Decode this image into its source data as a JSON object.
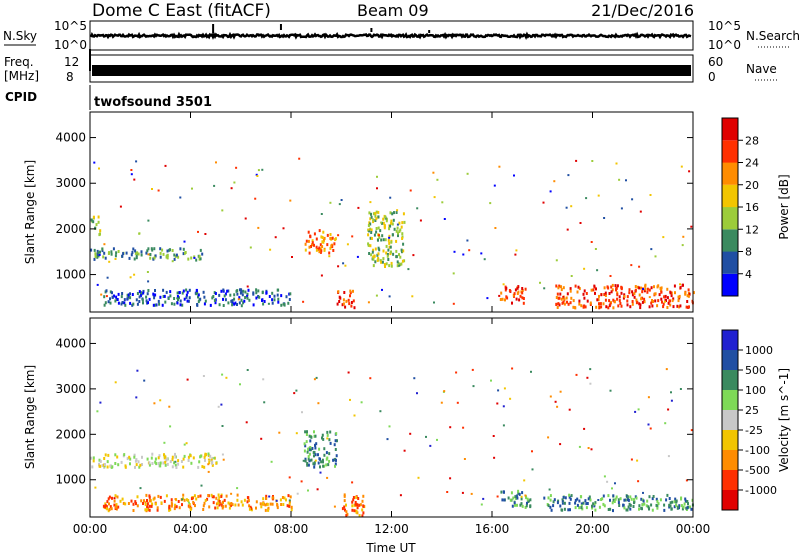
{
  "header": {
    "station": "Dome C East (fitACF)",
    "beam": "Beam 09",
    "date": "21/Dec/2016",
    "cpid_value": "twofsound 3501"
  },
  "strips": {
    "nsky": {
      "left_label": "N.Sky",
      "left_ticks": [
        "10^5",
        "10^0"
      ],
      "right_ticks": [
        "10^5",
        "10^0"
      ],
      "right_label": "N.Search"
    },
    "freq": {
      "left_label_top": "Freq.",
      "left_label_bottom": "[MHz]",
      "left_ticks": [
        "12",
        "8"
      ],
      "right_ticks": [
        "60",
        "0"
      ],
      "right_label": "Nave"
    },
    "cpid_label": "CPID"
  },
  "chart_data": [
    {
      "type": "heatmap",
      "panel": "power",
      "ylabel": "Slant Range [km]",
      "xlabel": "",
      "ylim": [
        180,
        4560
      ],
      "yticks": [
        "4000",
        "3000",
        "2000",
        "1000"
      ],
      "colorbar": {
        "label": "Power [dB]",
        "ticks": [
          "28",
          "24",
          "20",
          "16",
          "12",
          "8",
          "4"
        ],
        "colors": [
          "#0000ff",
          "#204fa3",
          "#3a8a5f",
          "#9ccc3a",
          "#f2c500",
          "#ff8c00",
          "#ff3000",
          "#e00000"
        ]
      },
      "features": [
        {
          "time_h": [
            0.0,
            0.4
          ],
          "range_km": [
            1900,
            2300
          ],
          "level": "medium"
        },
        {
          "time_h": [
            0.0,
            4.5
          ],
          "range_km": [
            1350,
            1600
          ],
          "level": "low-medium"
        },
        {
          "time_h": [
            0.5,
            8.0
          ],
          "range_km": [
            350,
            700
          ],
          "level": "low"
        },
        {
          "time_h": [
            8.5,
            9.8
          ],
          "range_km": [
            1500,
            2000
          ],
          "level": "high"
        },
        {
          "time_h": [
            9.8,
            10.5
          ],
          "range_km": [
            300,
            700
          ],
          "level": "very high"
        },
        {
          "time_h": [
            11.0,
            12.5
          ],
          "range_km": [
            1200,
            2400
          ],
          "level": "medium"
        },
        {
          "time_h": [
            16.3,
            17.3
          ],
          "range_km": [
            400,
            800
          ],
          "level": "very high"
        },
        {
          "time_h": [
            18.5,
            24.0
          ],
          "range_km": [
            300,
            800
          ],
          "level": "very high"
        }
      ]
    },
    {
      "type": "heatmap",
      "panel": "velocity",
      "ylabel": "Slant Range [km]",
      "xlabel": "Time UT",
      "ylim": [
        180,
        4560
      ],
      "yticks": [
        "4000",
        "3000",
        "2000",
        "1000"
      ],
      "xticks": [
        "00:00",
        "04:00",
        "08:00",
        "12:00",
        "16:00",
        "20:00",
        "00:00"
      ],
      "colorbar": {
        "label": "Velocity [m s^-1]",
        "ticks": [
          "1000",
          "500",
          "100",
          "25",
          "-25",
          "-100",
          "-500",
          "-1000"
        ],
        "colors": [
          "#e00000",
          "#ff3000",
          "#ff8c00",
          "#f2c500",
          "#c8c8c8",
          "#7ed957",
          "#3a8a5f",
          "#204fa3",
          "#2020d0"
        ]
      },
      "features": [
        {
          "time_h": [
            0.0,
            5.0
          ],
          "range_km": [
            1300,
            1600
          ],
          "level": "near zero"
        },
        {
          "time_h": [
            0.5,
            8.0
          ],
          "range_km": [
            350,
            700
          ],
          "level": "negative"
        },
        {
          "time_h": [
            8.5,
            9.8
          ],
          "range_km": [
            1300,
            2100
          ],
          "level": "positive"
        },
        {
          "time_h": [
            10.0,
            11.0
          ],
          "range_km": [
            200,
            700
          ],
          "level": "negative"
        },
        {
          "time_h": [
            16.3,
            17.5
          ],
          "range_km": [
            400,
            800
          ],
          "level": "positive"
        },
        {
          "time_h": [
            18.0,
            24.0
          ],
          "range_km": [
            350,
            700
          ],
          "level": "positive"
        }
      ]
    }
  ]
}
